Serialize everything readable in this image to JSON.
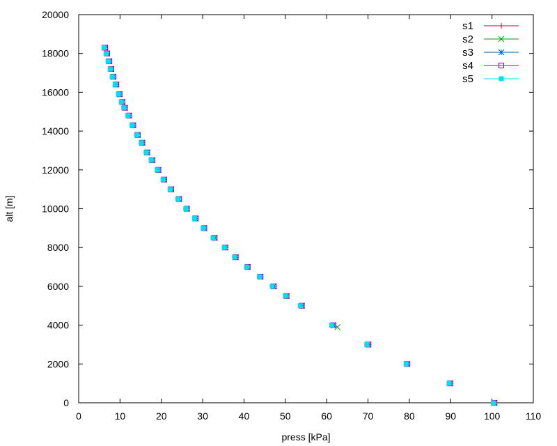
{
  "chart_data": {
    "type": "scatter",
    "xlabel": "press [kPa]",
    "ylabel": "alt [m]",
    "xlim": [
      0,
      110
    ],
    "ylim": [
      0,
      20000
    ],
    "x_ticks": [
      0,
      10,
      20,
      30,
      40,
      50,
      60,
      70,
      80,
      90,
      100,
      110
    ],
    "y_ticks": [
      0,
      2000,
      4000,
      6000,
      8000,
      10000,
      12000,
      14000,
      16000,
      18000,
      20000
    ],
    "grid": false,
    "legend_position": "top-right",
    "series": [
      {
        "name": "s1",
        "color": "#c0003a",
        "marker": "plus",
        "points": [
          [
            100.6,
            0
          ],
          [
            89.9,
            1000
          ],
          [
            79.5,
            2000
          ],
          [
            70.1,
            3000
          ],
          [
            61.6,
            4000
          ],
          [
            54.0,
            5000
          ],
          [
            50.3,
            5500
          ],
          [
            47.2,
            6000
          ],
          [
            44.0,
            6500
          ],
          [
            40.9,
            7000
          ],
          [
            38.0,
            7500
          ],
          [
            35.5,
            8000
          ],
          [
            32.9,
            8500
          ],
          [
            30.4,
            9000
          ],
          [
            28.3,
            9500
          ],
          [
            26.2,
            10000
          ],
          [
            24.3,
            10500
          ],
          [
            22.4,
            11000
          ],
          [
            20.7,
            11500
          ],
          [
            19.3,
            12000
          ],
          [
            17.8,
            12500
          ],
          [
            16.6,
            12900
          ],
          [
            15.4,
            13400
          ],
          [
            14.3,
            13800
          ],
          [
            13.2,
            14300
          ],
          [
            12.2,
            14800
          ],
          [
            11.2,
            15200
          ],
          [
            10.6,
            15500
          ],
          [
            9.9,
            15900
          ],
          [
            9.1,
            16400
          ],
          [
            8.4,
            16800
          ],
          [
            7.9,
            17200
          ],
          [
            7.4,
            17600
          ],
          [
            6.9,
            18000
          ],
          [
            6.4,
            18300
          ]
        ]
      },
      {
        "name": "s2",
        "color": "#00a000",
        "marker": "cross",
        "points": [
          [
            100.6,
            0
          ],
          [
            89.9,
            1000
          ],
          [
            79.5,
            2000
          ],
          [
            70.1,
            3000
          ],
          [
            62.6,
            3900
          ],
          [
            54.0,
            5000
          ],
          [
            50.3,
            5500
          ],
          [
            47.2,
            6000
          ],
          [
            44.0,
            6500
          ],
          [
            40.9,
            7000
          ],
          [
            38.0,
            7500
          ],
          [
            35.5,
            8000
          ],
          [
            32.9,
            8500
          ],
          [
            30.4,
            9000
          ],
          [
            28.3,
            9500
          ],
          [
            26.2,
            10000
          ],
          [
            24.3,
            10500
          ],
          [
            22.4,
            11000
          ],
          [
            20.7,
            11500
          ],
          [
            19.3,
            12000
          ],
          [
            17.8,
            12500
          ],
          [
            16.6,
            12900
          ],
          [
            15.4,
            13400
          ],
          [
            14.3,
            13800
          ],
          [
            13.2,
            14300
          ],
          [
            12.2,
            14800
          ],
          [
            11.2,
            15200
          ],
          [
            10.6,
            15500
          ],
          [
            9.9,
            15900
          ],
          [
            9.1,
            16400
          ],
          [
            8.4,
            16800
          ],
          [
            7.9,
            17200
          ],
          [
            7.4,
            17600
          ],
          [
            6.9,
            18000
          ],
          [
            6.4,
            18300
          ]
        ]
      },
      {
        "name": "s3",
        "color": "#0060b0",
        "marker": "star",
        "points": [
          [
            100.6,
            0
          ],
          [
            89.9,
            1000
          ],
          [
            79.5,
            2000
          ],
          [
            70.1,
            3000
          ],
          [
            61.6,
            4000
          ],
          [
            54.0,
            5000
          ],
          [
            50.3,
            5500
          ],
          [
            47.2,
            6000
          ],
          [
            44.0,
            6500
          ],
          [
            40.9,
            7000
          ],
          [
            38.0,
            7500
          ],
          [
            35.5,
            8000
          ],
          [
            32.9,
            8500
          ],
          [
            30.4,
            9000
          ],
          [
            28.3,
            9500
          ],
          [
            26.2,
            10000
          ],
          [
            24.3,
            10500
          ],
          [
            22.4,
            11000
          ],
          [
            20.7,
            11500
          ],
          [
            19.3,
            12000
          ],
          [
            17.8,
            12500
          ],
          [
            16.6,
            12900
          ],
          [
            15.4,
            13400
          ],
          [
            14.3,
            13800
          ],
          [
            13.2,
            14300
          ],
          [
            12.2,
            14800
          ],
          [
            11.2,
            15200
          ],
          [
            10.6,
            15500
          ],
          [
            9.9,
            15900
          ],
          [
            9.1,
            16400
          ],
          [
            8.4,
            16800
          ],
          [
            7.9,
            17200
          ],
          [
            7.4,
            17600
          ],
          [
            6.9,
            18000
          ],
          [
            6.4,
            18300
          ]
        ]
      },
      {
        "name": "s4",
        "color": "#a000c0",
        "marker": "open-square",
        "points": [
          [
            100.6,
            0
          ],
          [
            89.9,
            1000
          ],
          [
            79.5,
            2000
          ],
          [
            70.1,
            3000
          ],
          [
            61.6,
            4000
          ],
          [
            54.0,
            5000
          ],
          [
            50.3,
            5500
          ],
          [
            47.2,
            6000
          ],
          [
            44.0,
            6500
          ],
          [
            40.9,
            7000
          ],
          [
            38.0,
            7500
          ],
          [
            35.5,
            8000
          ],
          [
            32.9,
            8500
          ],
          [
            30.4,
            9000
          ],
          [
            28.3,
            9500
          ],
          [
            26.2,
            10000
          ],
          [
            24.3,
            10500
          ],
          [
            22.4,
            11000
          ],
          [
            20.7,
            11500
          ],
          [
            19.3,
            12000
          ],
          [
            17.8,
            12500
          ],
          [
            16.6,
            12900
          ],
          [
            15.4,
            13400
          ],
          [
            14.3,
            13800
          ],
          [
            13.2,
            14300
          ],
          [
            12.2,
            14800
          ],
          [
            11.2,
            15200
          ],
          [
            10.6,
            15500
          ],
          [
            9.9,
            15900
          ],
          [
            9.1,
            16400
          ],
          [
            8.4,
            16800
          ],
          [
            7.9,
            17200
          ],
          [
            7.4,
            17600
          ],
          [
            6.9,
            18000
          ],
          [
            6.4,
            18300
          ]
        ]
      },
      {
        "name": "s5",
        "color": "#00e0f0",
        "marker": "filled-square",
        "points": [
          [
            100.3,
            0
          ],
          [
            89.6,
            1000
          ],
          [
            79.2,
            2000
          ],
          [
            69.7,
            3000
          ],
          [
            61.2,
            4000
          ],
          [
            53.6,
            5000
          ],
          [
            50.0,
            5500
          ],
          [
            46.8,
            6000
          ],
          [
            43.7,
            6500
          ],
          [
            40.6,
            7000
          ],
          [
            37.7,
            7500
          ],
          [
            35.2,
            8000
          ],
          [
            32.5,
            8500
          ],
          [
            30.1,
            9000
          ],
          [
            28.0,
            9500
          ],
          [
            25.9,
            10000
          ],
          [
            24.0,
            10500
          ],
          [
            22.1,
            11000
          ],
          [
            20.4,
            11500
          ],
          [
            19.0,
            12000
          ],
          [
            17.5,
            12500
          ],
          [
            16.3,
            12900
          ],
          [
            15.1,
            13400
          ],
          [
            14.0,
            13800
          ],
          [
            12.9,
            14300
          ],
          [
            11.9,
            14800
          ],
          [
            10.9,
            15200
          ],
          [
            10.3,
            15500
          ],
          [
            9.6,
            15900
          ],
          [
            8.8,
            16400
          ],
          [
            8.1,
            16800
          ],
          [
            7.6,
            17200
          ],
          [
            7.1,
            17600
          ],
          [
            6.6,
            18000
          ],
          [
            6.1,
            18300
          ]
        ]
      }
    ]
  }
}
